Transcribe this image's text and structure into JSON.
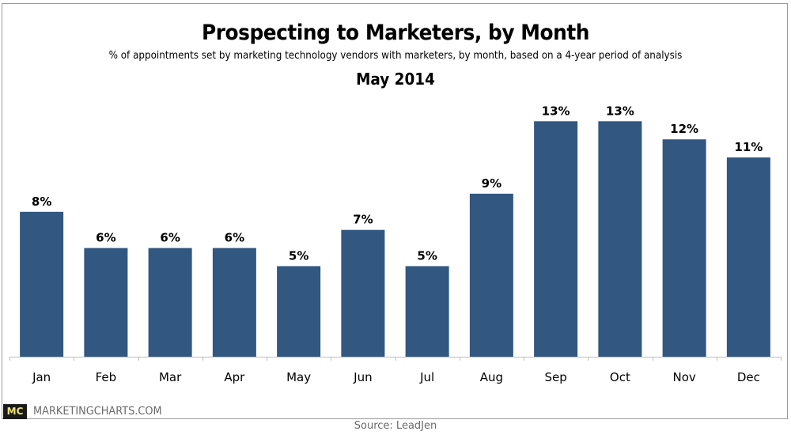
{
  "chart_data": {
    "type": "bar",
    "title": "Prospecting to Marketers, by Month",
    "subtitle": "% of appointments set by marketing technology vendors with marketers, by month, based on a 4-year period of analysis",
    "date": "May 2014",
    "xlabel": "",
    "ylabel": "",
    "categories": [
      "Jan",
      "Feb",
      "Mar",
      "Apr",
      "May",
      "Jun",
      "Jul",
      "Aug",
      "Sep",
      "Oct",
      "Nov",
      "Dec"
    ],
    "values": [
      8,
      6,
      6,
      6,
      5,
      7,
      5,
      9,
      13,
      13,
      12,
      11
    ],
    "value_labels": [
      "8%",
      "6%",
      "6%",
      "6%",
      "5%",
      "7%",
      "5%",
      "9%",
      "13%",
      "13%",
      "12%",
      "11%"
    ],
    "unit": "%",
    "ylim": [
      0,
      14
    ],
    "grid": false,
    "legend": "none",
    "bar_color": "#325780"
  },
  "footer": {
    "logo": "MC",
    "brand": "MARKETINGCHARTS.COM",
    "source": "Source: LeadJen"
  }
}
